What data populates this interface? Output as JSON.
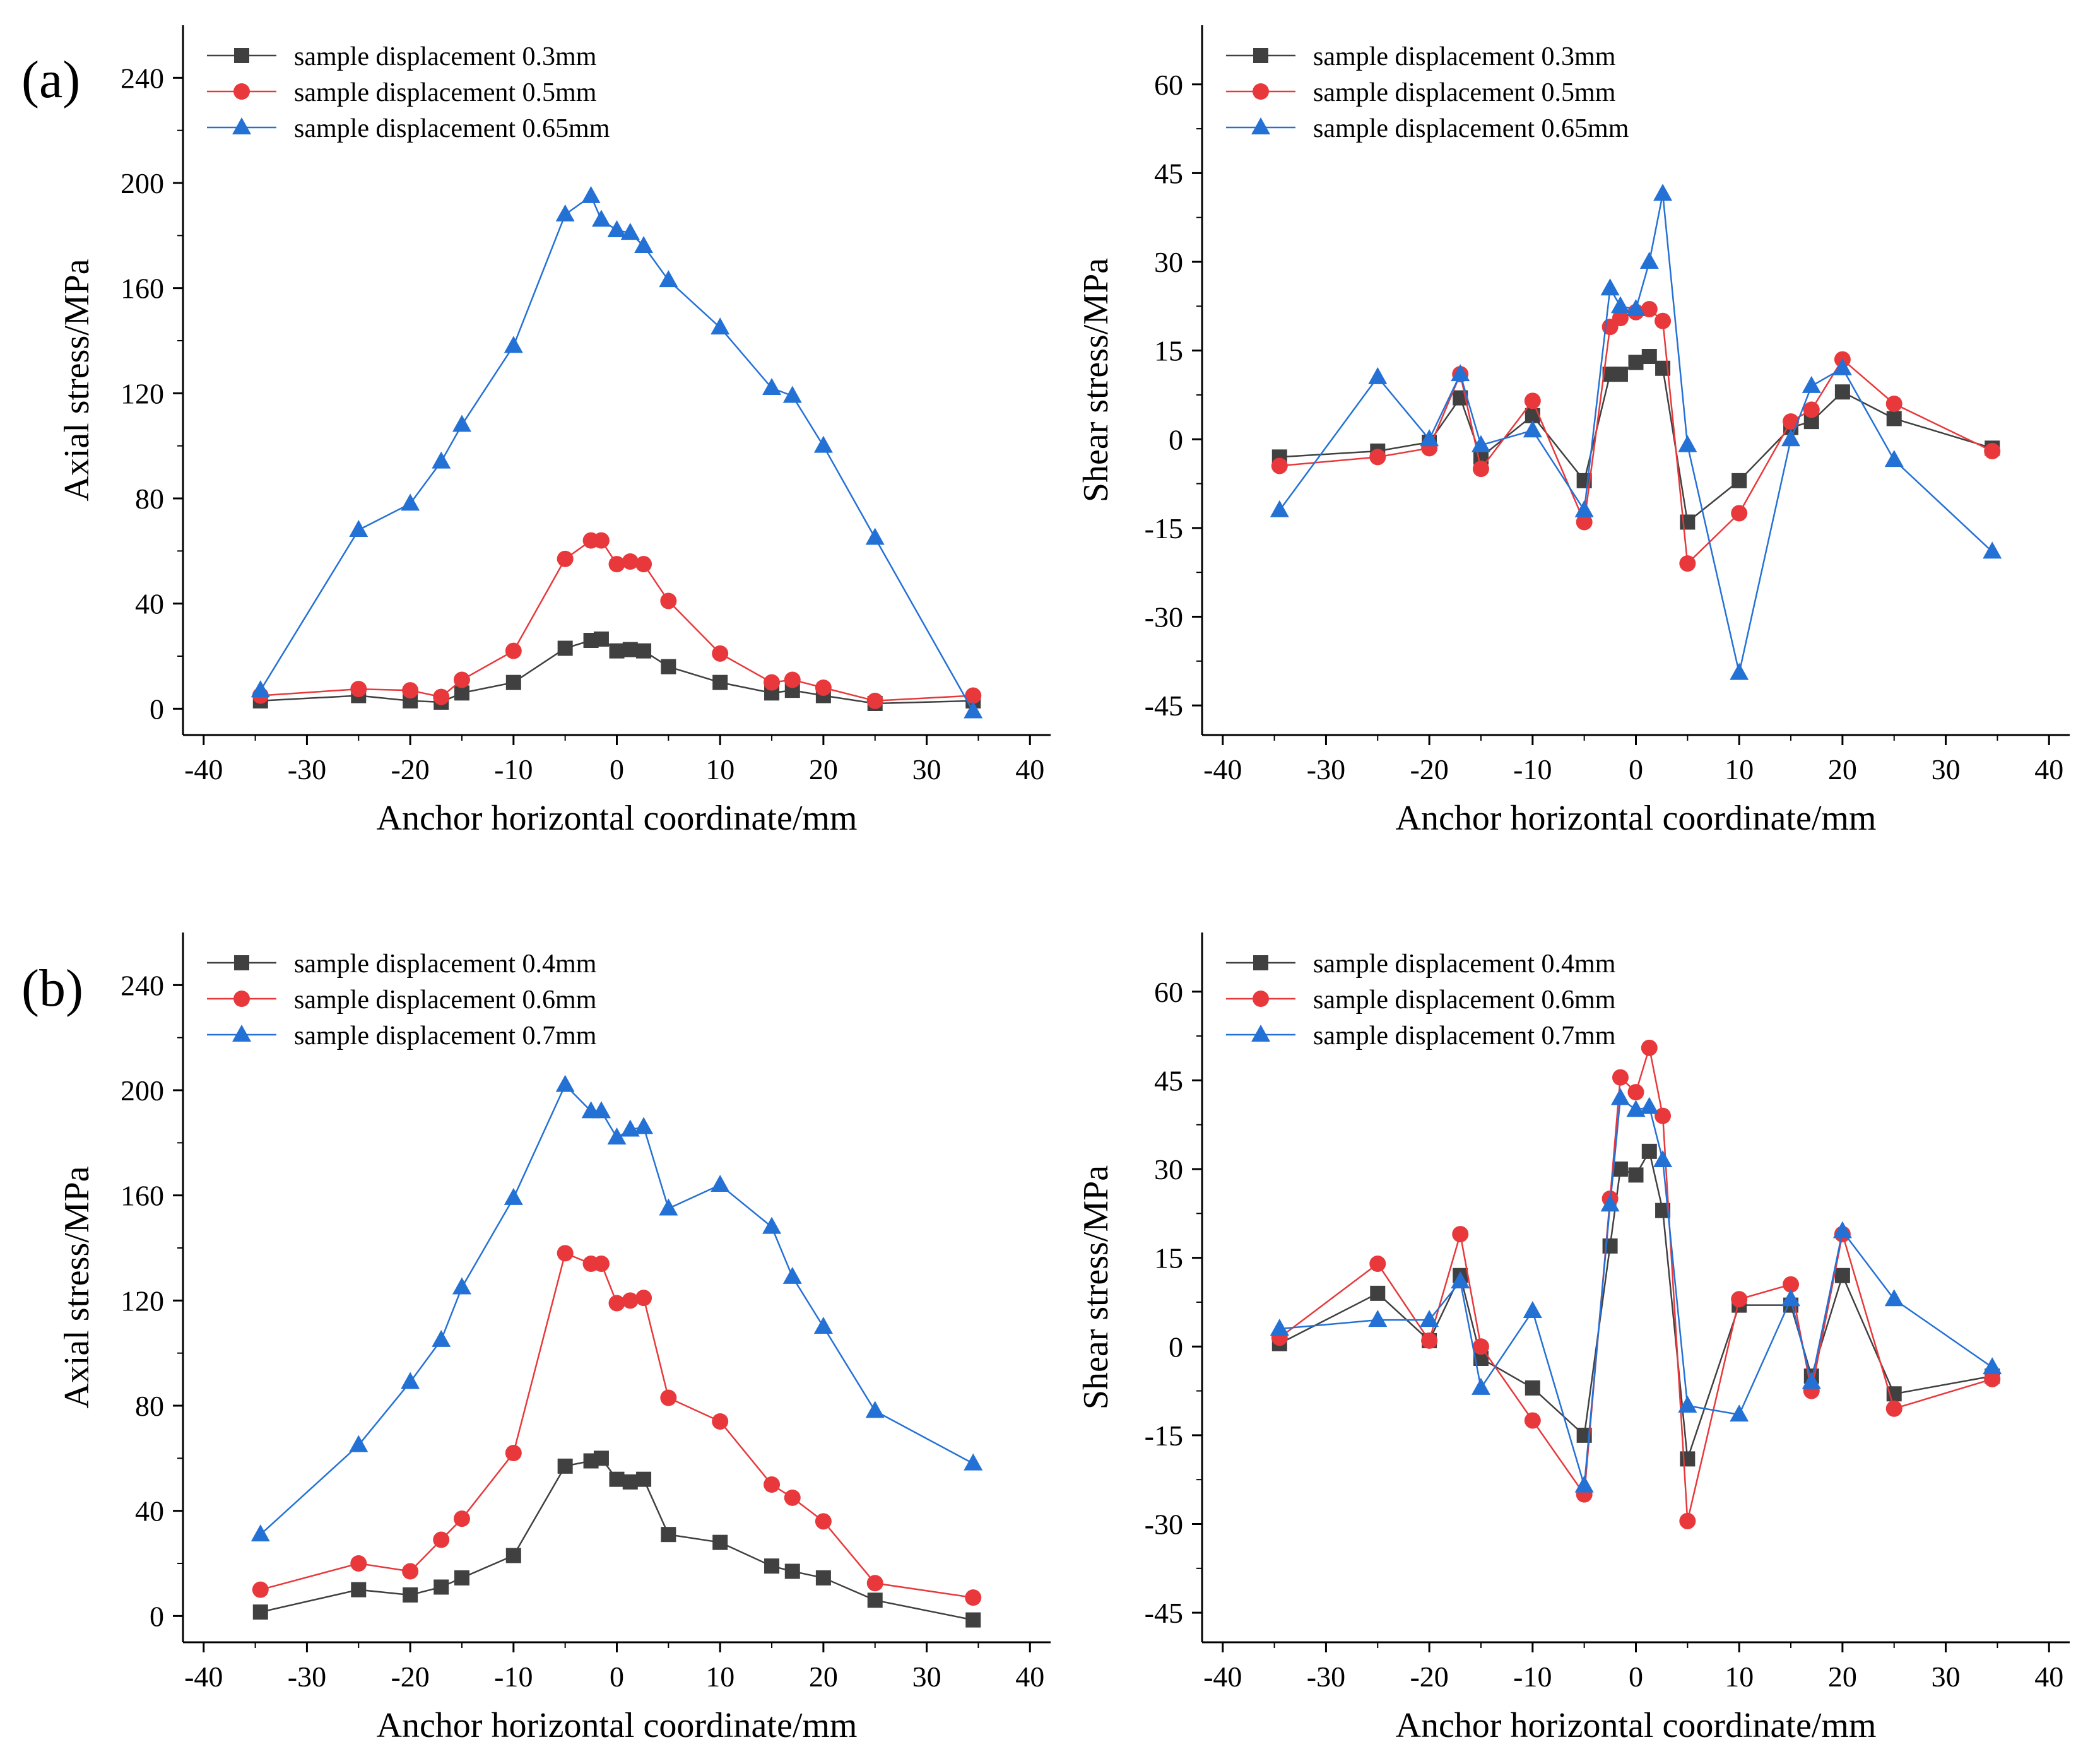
{
  "figure": {
    "panel_labels": [
      "(a)",
      "(b)"
    ]
  },
  "chart_data": [
    {
      "id": "a-axial",
      "type": "line",
      "xlabel": "Anchor horizontal coordinate/mm",
      "ylabel": "Axial stress/MPa",
      "xlim": [
        -42,
        42
      ],
      "ylim": [
        -10,
        260
      ],
      "xticks": [
        -40,
        -30,
        -20,
        -10,
        0,
        10,
        20,
        30,
        40
      ],
      "yticks": [
        0,
        40,
        80,
        120,
        160,
        200,
        240
      ],
      "legend_position": "top-left",
      "x": [
        -34.5,
        -25,
        -20,
        -17,
        -15,
        -10,
        -5,
        -2.5,
        -1.5,
        0,
        1.3,
        2.6,
        5,
        10,
        15,
        17,
        20,
        25,
        34.5
      ],
      "series": [
        {
          "name": "sample displacement 0.3mm",
          "color": "#404040",
          "marker": "square",
          "values": [
            3,
            5,
            3,
            2.5,
            6,
            10,
            23,
            26,
            26.5,
            22,
            22.5,
            22,
            16,
            10,
            6,
            7,
            5,
            2,
            3
          ]
        },
        {
          "name": "sample displacement 0.5mm",
          "color": "#e8383b",
          "marker": "circle",
          "values": [
            5,
            7.5,
            7,
            4.5,
            11,
            22,
            57,
            64,
            64,
            55,
            56,
            55,
            41,
            21,
            10,
            11,
            8,
            3,
            5
          ]
        },
        {
          "name": "sample displacement 0.65mm",
          "color": "#2471d6",
          "marker": "triangle",
          "values": [
            7,
            68,
            78,
            94,
            108,
            138,
            188,
            195,
            186,
            182,
            181,
            176,
            163,
            145,
            122,
            119,
            100,
            65,
            -1
          ]
        }
      ]
    },
    {
      "id": "a-shear",
      "type": "line",
      "xlabel": "Anchor horizontal coordinate/mm",
      "ylabel": "Shear stress/MPa",
      "xlim": [
        -42,
        42
      ],
      "ylim": [
        -50,
        70
      ],
      "xticks": [
        -40,
        -30,
        -20,
        -10,
        0,
        10,
        20,
        30,
        40
      ],
      "yticks": [
        -45,
        -30,
        -15,
        0,
        15,
        30,
        45,
        60
      ],
      "legend_position": "top-left",
      "x": [
        -34.5,
        -25,
        -20,
        -17,
        -15,
        -10,
        -5,
        -2.5,
        -1.5,
        0,
        1.3,
        2.6,
        5,
        10,
        15,
        17,
        20,
        25,
        34.5
      ],
      "series": [
        {
          "name": "sample displacement 0.3mm",
          "color": "#404040",
          "marker": "square",
          "values": [
            -3,
            -2,
            -0.5,
            7,
            -3,
            4,
            -7,
            11,
            11,
            13,
            14,
            12,
            -14,
            -7,
            2,
            3,
            8,
            3.5,
            -1.5
          ]
        },
        {
          "name": "sample displacement 0.5mm",
          "color": "#e8383b",
          "marker": "circle",
          "values": [
            -4.5,
            -3,
            -1.5,
            11,
            -5,
            6.5,
            -14,
            19,
            20.5,
            21.5,
            22,
            20,
            -21,
            -12.5,
            3,
            5,
            13.5,
            6,
            -2
          ]
        },
        {
          "name": "sample displacement 0.65mm",
          "color": "#2471d6",
          "marker": "triangle",
          "values": [
            -12,
            10.5,
            0,
            11,
            -1,
            1.5,
            -12,
            25.5,
            22.5,
            22,
            30,
            41.5,
            -1,
            -39.5,
            0,
            9,
            12,
            -3.5,
            -19
          ]
        }
      ]
    },
    {
      "id": "b-axial",
      "type": "line",
      "xlabel": "Anchor horizontal coordinate/mm",
      "ylabel": "Axial stress/MPa",
      "xlim": [
        -42,
        42
      ],
      "ylim": [
        -10,
        260
      ],
      "xticks": [
        -40,
        -30,
        -20,
        -10,
        0,
        10,
        20,
        30,
        40
      ],
      "yticks": [
        0,
        40,
        80,
        120,
        160,
        200,
        240
      ],
      "legend_position": "top-left",
      "x": [
        -34.5,
        -25,
        -20,
        -17,
        -15,
        -10,
        -5,
        -2.5,
        -1.5,
        0,
        1.3,
        2.6,
        5,
        10,
        15,
        17,
        20,
        25,
        34.5
      ],
      "series": [
        {
          "name": "sample displacement 0.4mm",
          "color": "#404040",
          "marker": "square",
          "values": [
            1.5,
            10,
            8,
            11,
            14.5,
            23,
            57,
            59,
            60,
            52,
            51,
            52,
            31,
            28,
            19,
            17,
            14.5,
            6,
            -1.5
          ]
        },
        {
          "name": "sample displacement 0.6mm",
          "color": "#e8383b",
          "marker": "circle",
          "values": [
            10,
            20,
            17,
            29,
            37,
            62,
            138,
            134,
            134,
            119,
            120,
            121,
            83,
            74,
            50,
            45,
            36,
            12.5,
            7
          ]
        },
        {
          "name": "sample displacement 0.7mm",
          "color": "#2471d6",
          "marker": "triangle",
          "values": [
            31,
            65,
            89,
            105,
            125,
            159,
            202,
            192,
            192,
            182,
            185,
            186,
            155,
            164,
            148,
            129,
            110,
            78,
            58
          ]
        }
      ]
    },
    {
      "id": "b-shear",
      "type": "line",
      "xlabel": "Anchor horizontal coordinate/mm",
      "ylabel": "Shear stress/MPa",
      "xlim": [
        -42,
        42
      ],
      "ylim": [
        -50,
        70
      ],
      "xticks": [
        -40,
        -30,
        -20,
        -10,
        0,
        10,
        20,
        30,
        40
      ],
      "yticks": [
        -45,
        -30,
        -15,
        0,
        15,
        30,
        45,
        60
      ],
      "legend_position": "top-left",
      "x": [
        -34.5,
        -25,
        -20,
        -17,
        -15,
        -10,
        -5,
        -2.5,
        -1.5,
        0,
        1.3,
        2.6,
        5,
        10,
        15,
        17,
        20,
        25,
        34.5
      ],
      "series": [
        {
          "name": "sample displacement 0.4mm",
          "color": "#404040",
          "marker": "square",
          "values": [
            0.5,
            9,
            1,
            12,
            -2,
            -7,
            -15,
            17,
            30,
            29,
            33,
            23,
            -19,
            7,
            7,
            -5,
            12,
            -8,
            -5
          ]
        },
        {
          "name": "sample displacement 0.6mm",
          "color": "#e8383b",
          "marker": "circle",
          "values": [
            1.5,
            14,
            1,
            19,
            0,
            -12.5,
            -25,
            25,
            45.5,
            43,
            50.5,
            39,
            -29.5,
            8,
            10.5,
            -7.5,
            19,
            -10.5,
            -5.5
          ]
        },
        {
          "name": "sample displacement 0.7mm",
          "color": "#2471d6",
          "marker": "triangle",
          "values": [
            3,
            4.5,
            4.5,
            11,
            -7,
            6,
            -23.5,
            24,
            42,
            40,
            40.5,
            31.5,
            -10,
            -11.5,
            8,
            -6,
            19.5,
            8,
            -3.5
          ]
        }
      ]
    }
  ]
}
